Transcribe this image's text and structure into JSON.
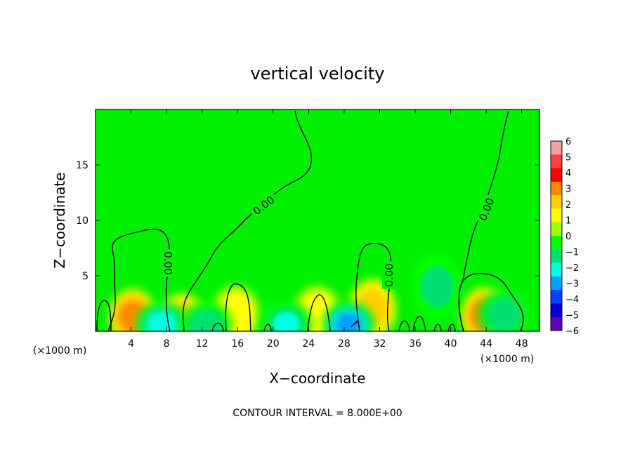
{
  "chart_data": {
    "type": "heatmap",
    "title": "vertical velocity",
    "xlabel": "X−coordinate",
    "ylabel": "Z−coordinate",
    "x_unit_label": "(×1000 m)",
    "x_unit_label_right": "(×1000 m)",
    "xlim": [
      0,
      50
    ],
    "ylim": [
      0,
      20
    ],
    "x_ticks": [
      4,
      8,
      12,
      16,
      20,
      24,
      28,
      32,
      36,
      40,
      44,
      48
    ],
    "x_tick_labels": [
      "4",
      "8",
      "12",
      "16",
      "20",
      "24",
      "28",
      "32",
      "36",
      "40",
      "44",
      "48"
    ],
    "y_ticks": [
      5,
      10,
      15
    ],
    "y_tick_labels": [
      "5",
      "10",
      "15"
    ],
    "contour_level": 0.0,
    "contour_labels": [
      "0.00",
      "0.00",
      "0.00",
      "0.00"
    ],
    "contour_interval_text": "CONTOUR INTERVAL = 8.000E+00",
    "background_value": 0.3,
    "colorbar": {
      "levels": [
        6,
        5,
        4,
        3,
        2,
        1,
        0,
        -1,
        -2,
        -3,
        -4,
        -5,
        -6
      ],
      "labels": [
        "6",
        "5",
        "4",
        "3",
        "2",
        "1",
        "0",
        "−1",
        "−2",
        "−3",
        "−4",
        "−5",
        "−6"
      ],
      "colors": [
        "#f5a0a0",
        "#ff4040",
        "#ff0000",
        "#ff8800",
        "#ffd000",
        "#ffff00",
        "#a0ff00",
        "#00ff00",
        "#00e070",
        "#00ffe0",
        "#00a0ff",
        "#0040ff",
        "#0000d0",
        "#6000c0"
      ]
    },
    "features": [
      {
        "kind": "updraft",
        "x": 4.2,
        "z": 1.3,
        "value": 3.8
      },
      {
        "kind": "updraft",
        "x": 9.8,
        "z": 1.0,
        "value": 2.6
      },
      {
        "kind": "updraft",
        "x": 15.8,
        "z": 1.5,
        "value": 1.9
      },
      {
        "kind": "updraft",
        "x": 25.0,
        "z": 1.5,
        "value": 1.5
      },
      {
        "kind": "updraft",
        "x": 31.2,
        "z": 2.0,
        "value": 2.6
      },
      {
        "kind": "updraft",
        "x": 43.8,
        "z": 1.4,
        "value": 3.6
      },
      {
        "kind": "downdraft",
        "x": 7.5,
        "z": 0.6,
        "value": -3.0
      },
      {
        "kind": "downdraft",
        "x": 12.5,
        "z": 0.6,
        "value": -1.8
      },
      {
        "kind": "downdraft",
        "x": 21.5,
        "z": 0.7,
        "value": -2.2
      },
      {
        "kind": "downdraft",
        "x": 28.5,
        "z": 0.6,
        "value": -3.5
      },
      {
        "kind": "downdraft",
        "x": 38.5,
        "z": 4.0,
        "value": -1.4
      },
      {
        "kind": "downdraft",
        "x": 46.0,
        "z": 1.5,
        "value": -2.0
      }
    ]
  }
}
